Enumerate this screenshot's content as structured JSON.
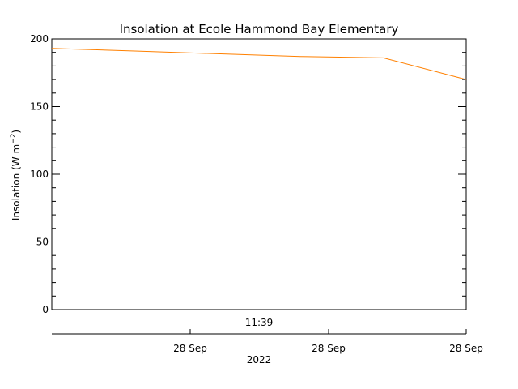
{
  "chart_data": {
    "type": "line",
    "title": "Insolation at Ecole Hammond Bay Elementary",
    "ylabel": "Insolation (W m",
    "ylabel_sup": "−2",
    "ylabel_close": ")",
    "ylim": [
      0,
      200
    ],
    "y_ticks": [
      0,
      50,
      100,
      150,
      200
    ],
    "y_tick_labels": [
      "0",
      "50",
      "100",
      "150",
      "200"
    ],
    "time_label": "11:39",
    "date_tick_labels": [
      "28 Sep",
      "28 Sep",
      "28 Sep"
    ],
    "year_label": "2022",
    "series": [
      {
        "color": "#ff8000",
        "values": [
          193,
          191,
          189,
          187,
          186,
          170
        ]
      }
    ],
    "grid": false
  }
}
